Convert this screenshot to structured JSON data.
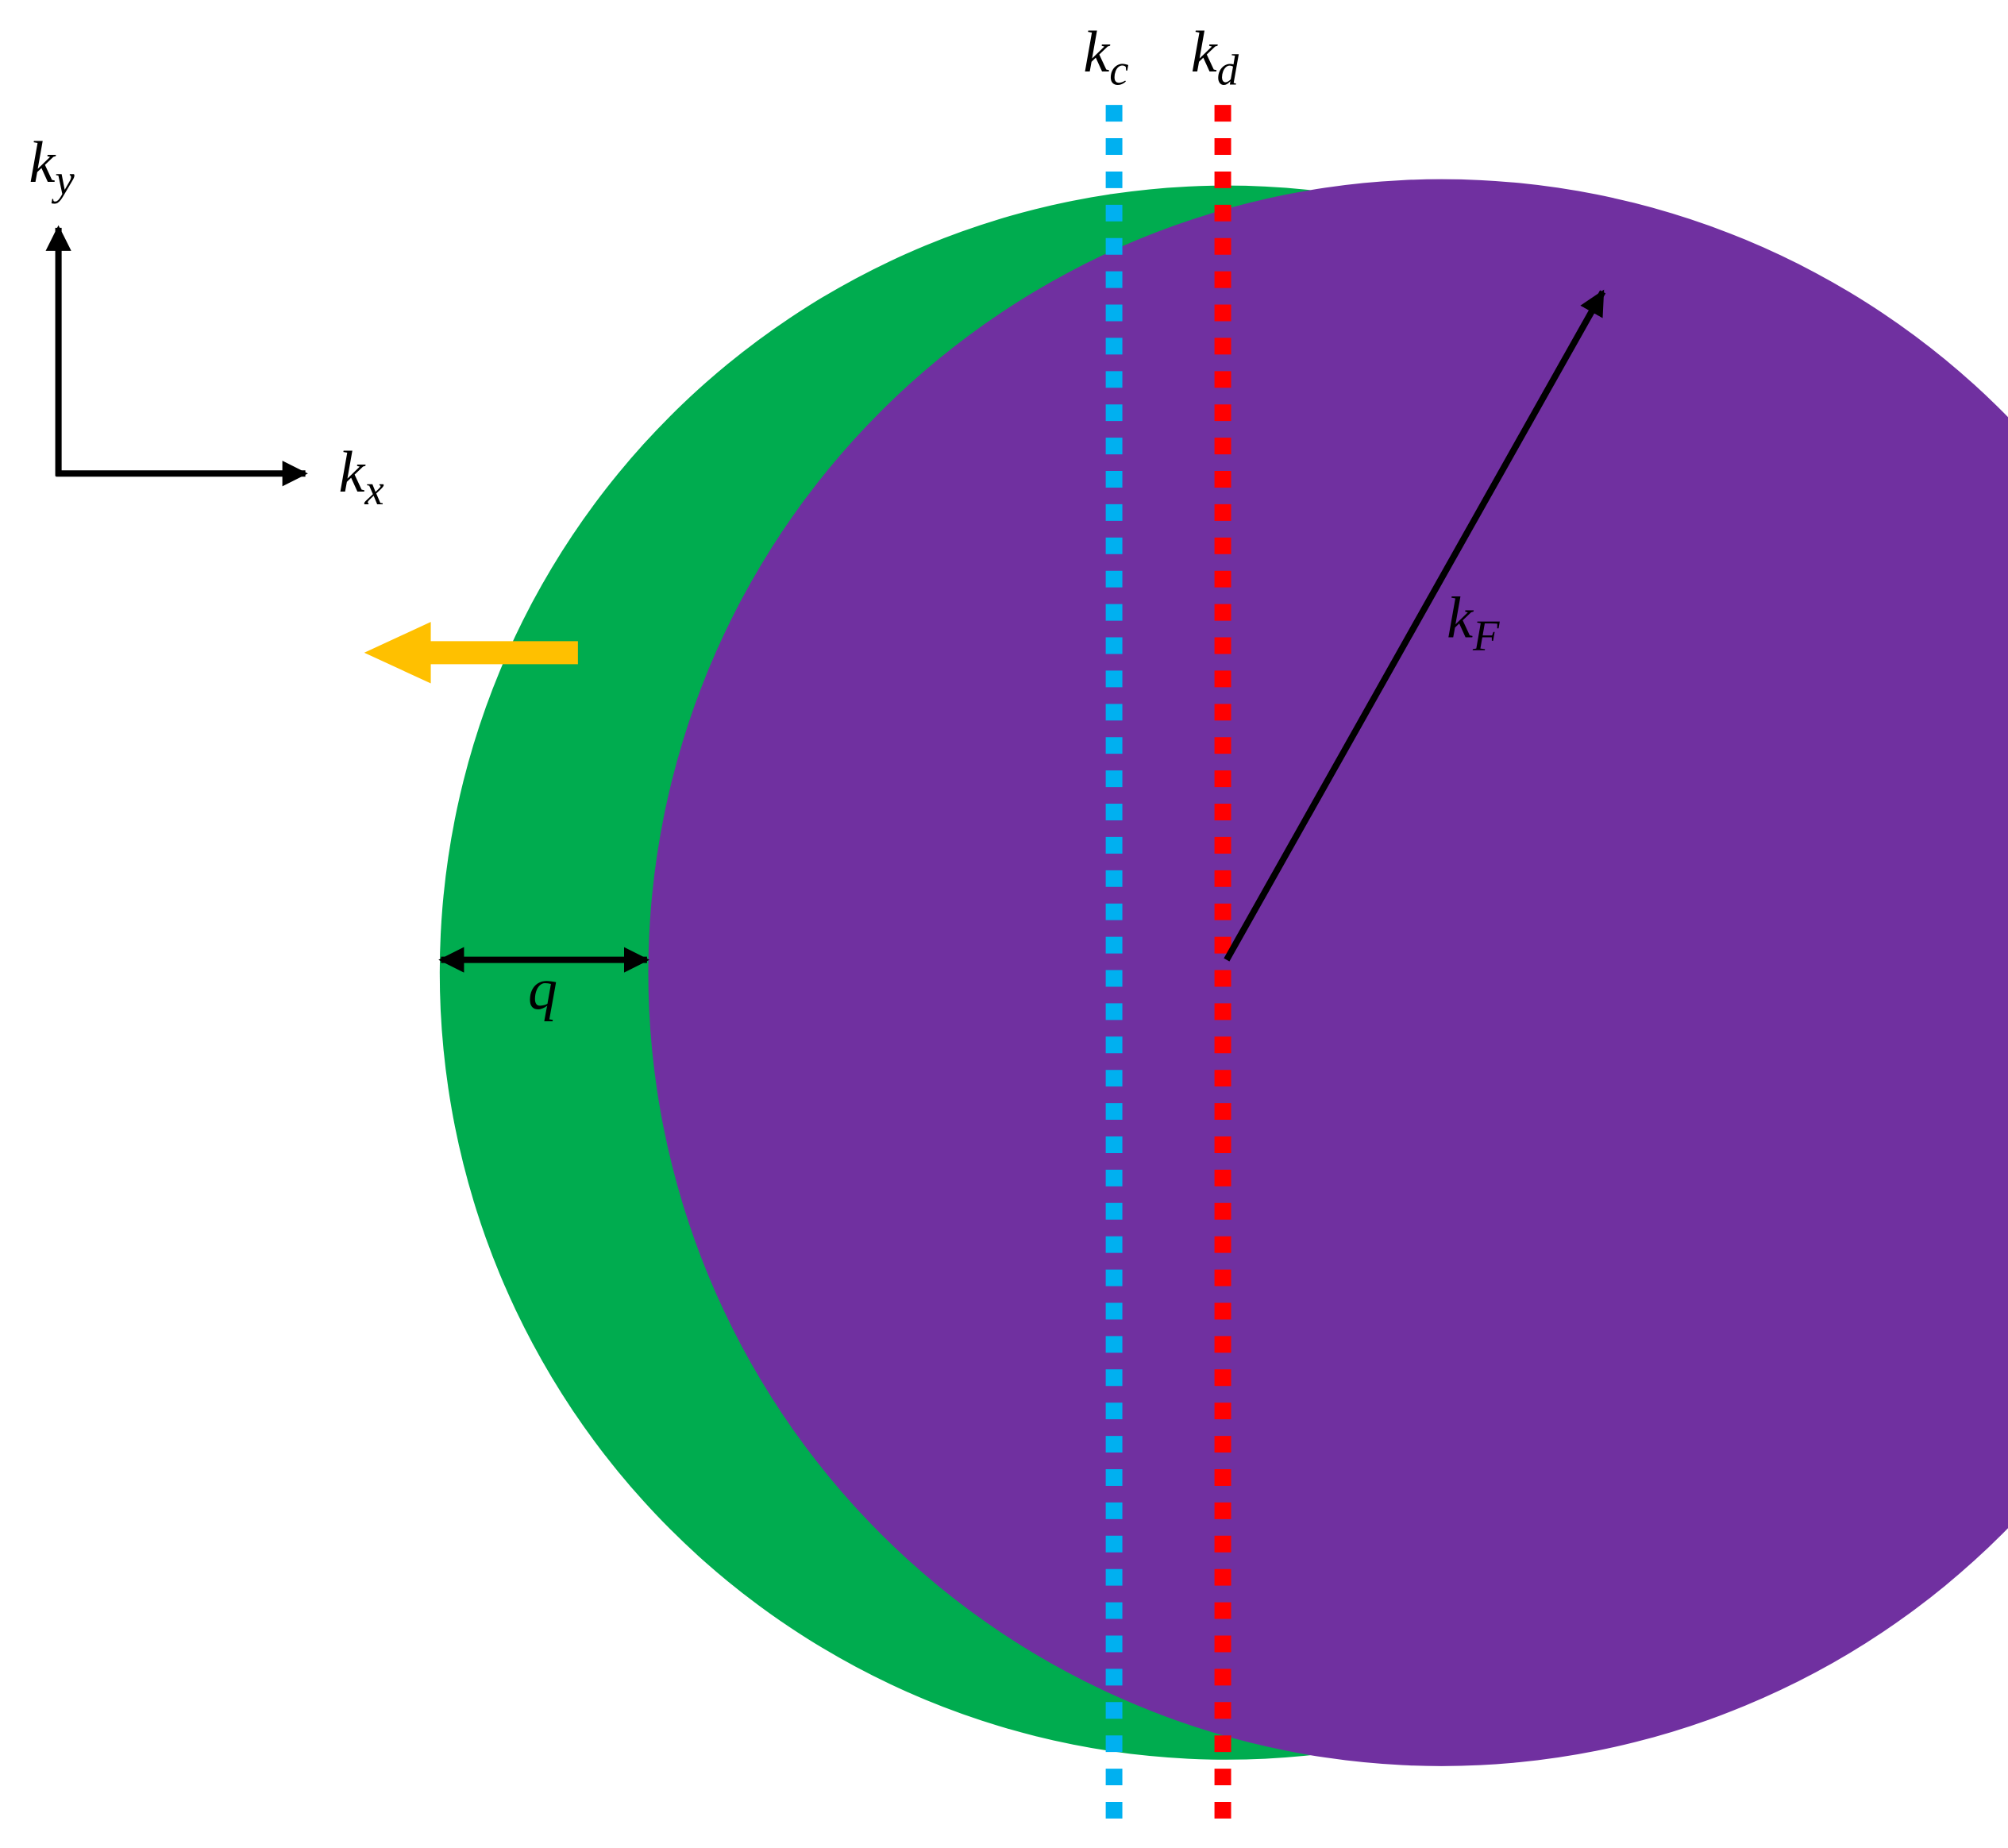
{
  "labels": [
    {
      "main": "k",
      "sub": "c"
    },
    {
      "main": "k",
      "sub": "d"
    },
    {
      "main": "k",
      "sub": "y"
    },
    {
      "main": "k",
      "sub": "x"
    },
    {
      "main": "k",
      "sub": "F"
    },
    {
      "main": "q"
    }
  ]
}
